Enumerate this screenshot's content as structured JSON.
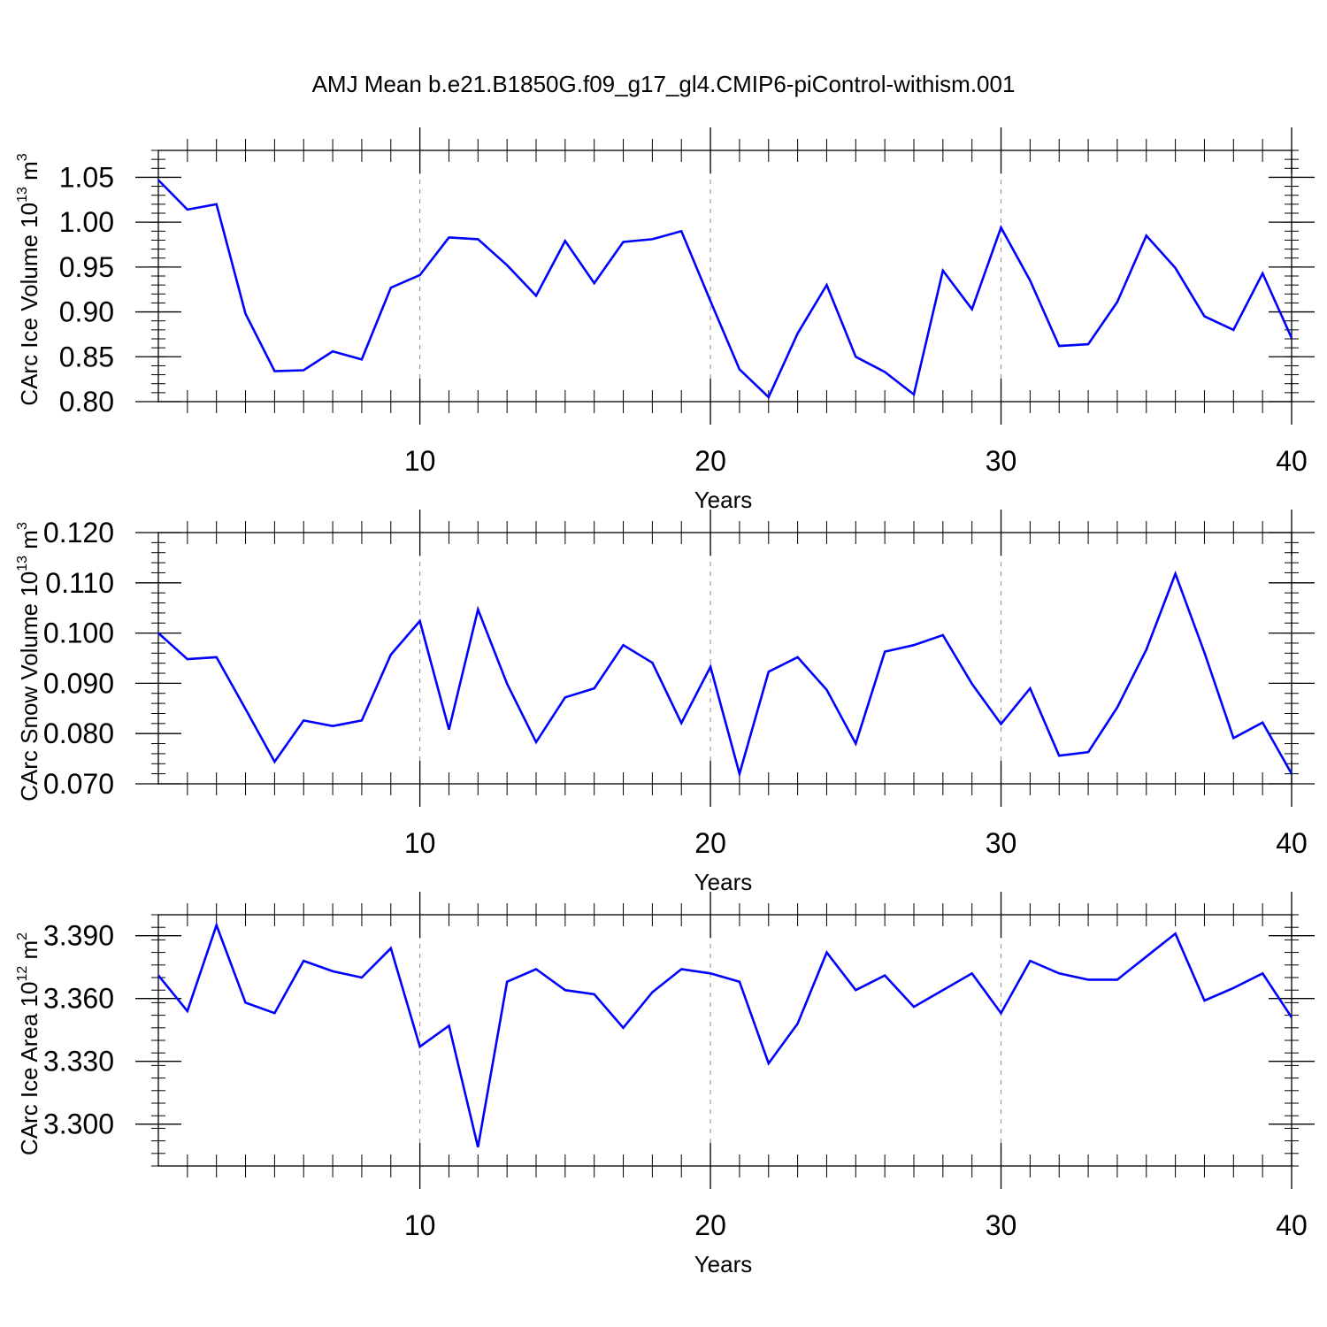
{
  "title": "AMJ Mean b.e21.B1850G.f09_g17_gl4.CMIP6-piControl-withism.001",
  "colors": {
    "line": "#0000ff",
    "axis": "#000000",
    "grid": "#999999"
  },
  "chart_data": [
    {
      "type": "line",
      "title": "",
      "xlabel": "Years",
      "ylabel_main": "CArc Ice Volume 10",
      "ylabel_exp": "13",
      "ylabel_unit": " m",
      "ylabel_unit_exp": "3",
      "xlim": [
        1,
        40
      ],
      "ylim": [
        0.8,
        1.08
      ],
      "x_ticks": [
        10,
        20,
        30,
        40
      ],
      "y_ticks": [
        "0.80",
        "0.85",
        "0.90",
        "0.95",
        "1.00",
        "1.05"
      ],
      "grid": "vertical dashed at major x ticks",
      "x": [
        1,
        2,
        3,
        4,
        5,
        6,
        7,
        8,
        9,
        10,
        11,
        12,
        13,
        14,
        15,
        16,
        17,
        18,
        19,
        20,
        21,
        22,
        23,
        24,
        25,
        26,
        27,
        28,
        29,
        30,
        31,
        32,
        33,
        34,
        35,
        36,
        37,
        38,
        39,
        40
      ],
      "series": [
        {
          "values": [
            1.047,
            1.014,
            1.02,
            0.898,
            0.834,
            0.835,
            0.856,
            0.847,
            0.927,
            0.941,
            0.983,
            0.981,
            0.952,
            0.918,
            0.979,
            0.932,
            0.978,
            0.981,
            0.99,
            0.912,
            0.836,
            0.805,
            0.876,
            0.93,
            0.85,
            0.833,
            0.808,
            0.946,
            0.903,
            0.994,
            0.935,
            0.862,
            0.864,
            0.911,
            0.985,
            0.949,
            0.895,
            0.88,
            0.943,
            0.871
          ]
        }
      ]
    },
    {
      "type": "line",
      "title": "",
      "xlabel": "Years",
      "ylabel_main": "CArc Snow Volume 10",
      "ylabel_exp": "13",
      "ylabel_unit": " m",
      "ylabel_unit_exp": "3",
      "xlim": [
        1,
        40
      ],
      "ylim": [
        0.07,
        0.12
      ],
      "x_ticks": [
        10,
        20,
        30,
        40
      ],
      "y_ticks": [
        "0.070",
        "0.080",
        "0.090",
        "0.100",
        "0.110",
        "0.120"
      ],
      "grid": "vertical dashed at major x ticks",
      "x": [
        1,
        2,
        3,
        4,
        5,
        6,
        7,
        8,
        9,
        10,
        11,
        12,
        13,
        14,
        15,
        16,
        17,
        18,
        19,
        20,
        21,
        22,
        23,
        24,
        25,
        26,
        27,
        28,
        29,
        30,
        31,
        32,
        33,
        34,
        35,
        36,
        37,
        38,
        39,
        40
      ],
      "series": [
        {
          "values": [
            0.1,
            0.0948,
            0.0952,
            0.0849,
            0.0744,
            0.0826,
            0.0815,
            0.0826,
            0.0957,
            0.1024,
            0.0808,
            0.1047,
            0.0899,
            0.0783,
            0.0872,
            0.089,
            0.0976,
            0.0941,
            0.0821,
            0.0933,
            0.072,
            0.0923,
            0.0952,
            0.0887,
            0.078,
            0.0963,
            0.0976,
            0.0996,
            0.0899,
            0.0819,
            0.089,
            0.0756,
            0.0763,
            0.0852,
            0.0967,
            0.1118,
            0.0961,
            0.0791,
            0.0822,
            0.072
          ]
        }
      ]
    },
    {
      "type": "line",
      "title": "",
      "xlabel": "Years",
      "ylabel_main": "CArc Ice Area 10",
      "ylabel_exp": "12",
      "ylabel_unit": " m",
      "ylabel_unit_exp": "2",
      "xlim": [
        1,
        40
      ],
      "ylim": [
        3.28,
        3.4
      ],
      "x_ticks": [
        10,
        20,
        30,
        40
      ],
      "y_ticks": [
        "3.300",
        "3.330",
        "3.360",
        "3.390"
      ],
      "grid": "vertical dashed at major x ticks",
      "x": [
        1,
        2,
        3,
        4,
        5,
        6,
        7,
        8,
        9,
        10,
        11,
        12,
        13,
        14,
        15,
        16,
        17,
        18,
        19,
        20,
        21,
        22,
        23,
        24,
        25,
        26,
        27,
        28,
        29,
        30,
        31,
        32,
        33,
        34,
        35,
        36,
        37,
        38,
        39,
        40
      ],
      "series": [
        {
          "values": [
            3.371,
            3.354,
            3.395,
            3.358,
            3.353,
            3.378,
            3.373,
            3.37,
            3.384,
            3.337,
            3.347,
            3.289,
            3.368,
            3.374,
            3.364,
            3.362,
            3.346,
            3.363,
            3.374,
            3.372,
            3.368,
            3.329,
            3.348,
            3.382,
            3.364,
            3.371,
            3.356,
            3.364,
            3.372,
            3.353,
            3.378,
            3.372,
            3.369,
            3.369,
            3.38,
            3.391,
            3.359,
            3.365,
            3.372,
            3.351
          ]
        }
      ]
    }
  ]
}
